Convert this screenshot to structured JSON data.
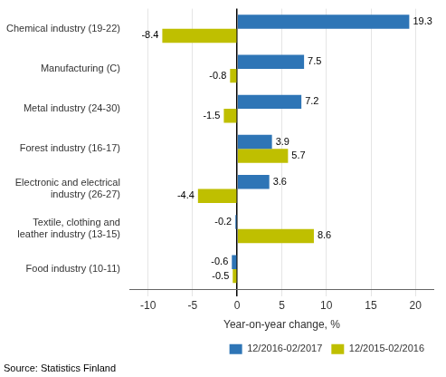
{
  "chart_data": {
    "type": "bar",
    "orientation": "horizontal",
    "categories": [
      "Chemical industry (19-22)",
      "Manufacturing (C)",
      "Metal industry (24-30)",
      "Forest industry (16-17)",
      "Electronic and electrical\nindustry (26-27)",
      "Textile, clothing and\nleather industry (13-15)",
      "Food industry (10-11)"
    ],
    "series": [
      {
        "name": "12/2016-02/2017",
        "color": "#2E75B6",
        "values": [
          19.3,
          7.5,
          7.2,
          3.9,
          3.6,
          -0.2,
          -0.6
        ]
      },
      {
        "name": "12/2015-02/2016",
        "color": "#BFBF00",
        "values": [
          -8.4,
          -0.8,
          -1.5,
          5.7,
          -4.4,
          8.6,
          -0.5
        ]
      }
    ],
    "xlabel": "Year-on-year change, %",
    "xlim": [
      -12,
      22
    ],
    "xticks": [
      -10,
      -5,
      0,
      5,
      10,
      15,
      20
    ],
    "grid": true,
    "legend": "lower right",
    "data_labels": true,
    "annotations": [
      "Source: Statistics Finland"
    ]
  }
}
